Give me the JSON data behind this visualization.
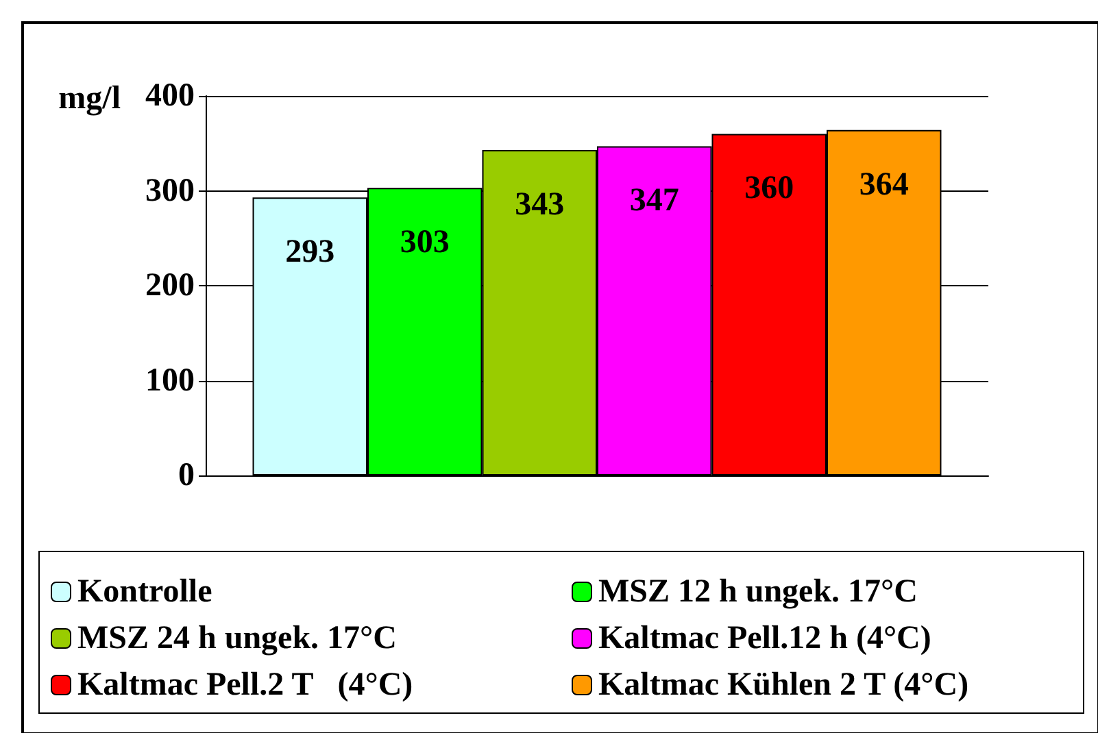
{
  "chart_data": {
    "type": "bar",
    "ylabel": "mg/l",
    "categories": [
      null
    ],
    "series": [
      {
        "name": "Kontrolle",
        "color": "#ccffff",
        "values": [
          293
        ]
      },
      {
        "name": "MSZ 12 h ungek. 17°C",
        "color": "#00ff00",
        "values": [
          303
        ]
      },
      {
        "name": "MSZ 24 h ungek. 17°C",
        "color": "#99cc00",
        "values": [
          343
        ]
      },
      {
        "name": "Kaltmac Pell.12 h (4°C)",
        "color": "#ff00ff",
        "values": [
          347
        ]
      },
      {
        "name": "Kaltmac Pell.2 T   (4°C)",
        "color": "#ff0000",
        "values": [
          360
        ]
      },
      {
        "name": "Kaltmac Kühlen 2 T (4°C)",
        "color": "#ff9900",
        "values": [
          364
        ]
      }
    ],
    "ylim": [
      0,
      400
    ],
    "yticks": [
      0,
      100,
      200,
      300,
      400
    ],
    "grid": "y",
    "legend": "bottom",
    "data_labels": true
  }
}
